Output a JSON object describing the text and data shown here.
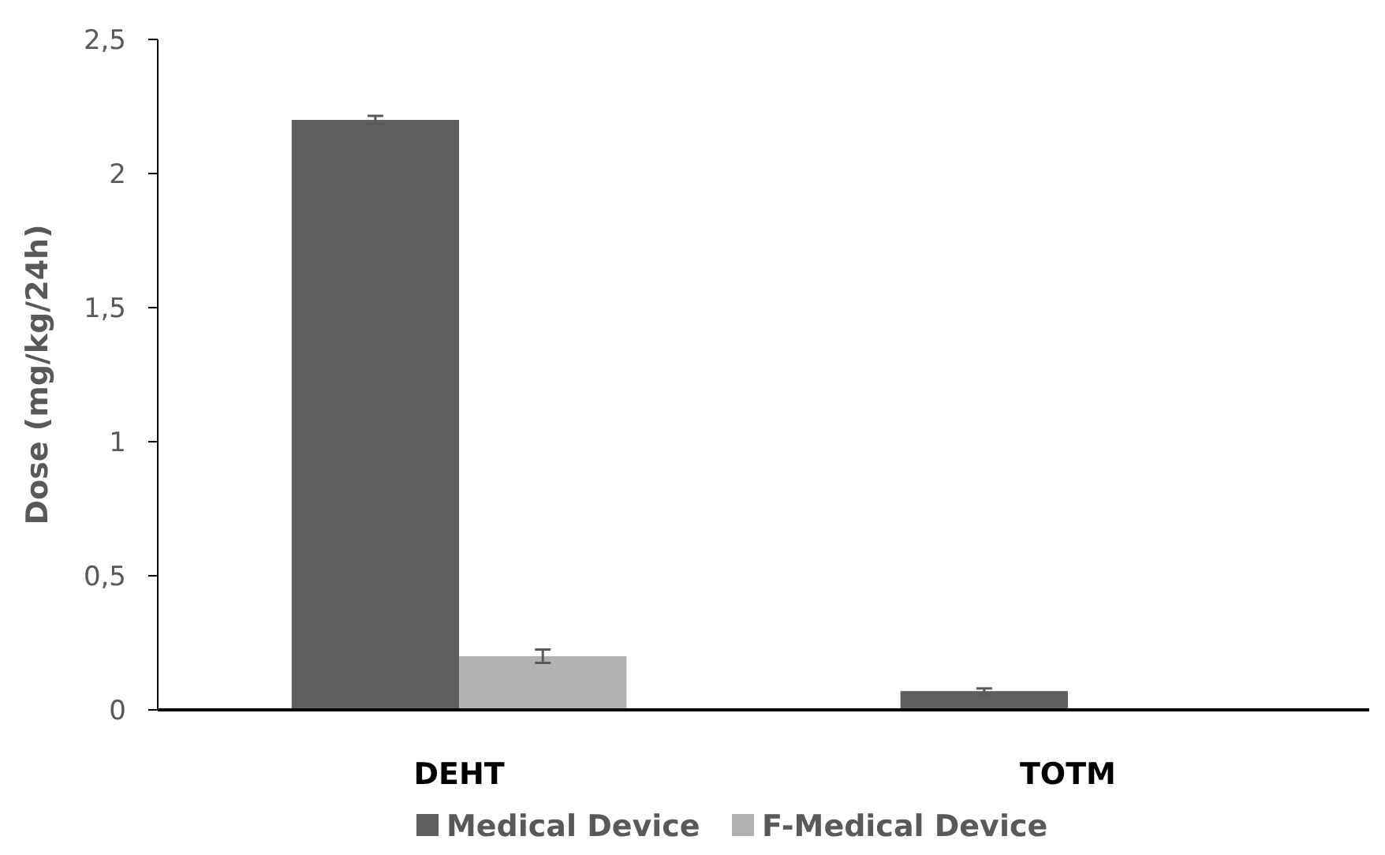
{
  "chart_data": {
    "type": "bar",
    "ylabel": "Dose (mg/kg/24h)",
    "categories": [
      "DEHT",
      "TOTM"
    ],
    "series": [
      {
        "name": "Medical Device",
        "color": "#5f5f5f",
        "values": [
          2.2,
          0.07
        ],
        "errors": [
          0.015,
          0.01
        ]
      },
      {
        "name": "F-Medical Device",
        "color": "#b2b2b2",
        "values": [
          0.2,
          0
        ],
        "errors": [
          0.025,
          null
        ]
      }
    ],
    "ylim": [
      0,
      2.5
    ],
    "yticks": [
      {
        "value": 0,
        "label": "0"
      },
      {
        "value": 0.5,
        "label": "0,5"
      },
      {
        "value": 1,
        "label": "1"
      },
      {
        "value": 1.5,
        "label": "1,5"
      },
      {
        "value": 2,
        "label": "2"
      },
      {
        "value": 2.5,
        "label": "2,5"
      }
    ],
    "grid": false,
    "legend": "bottom"
  }
}
